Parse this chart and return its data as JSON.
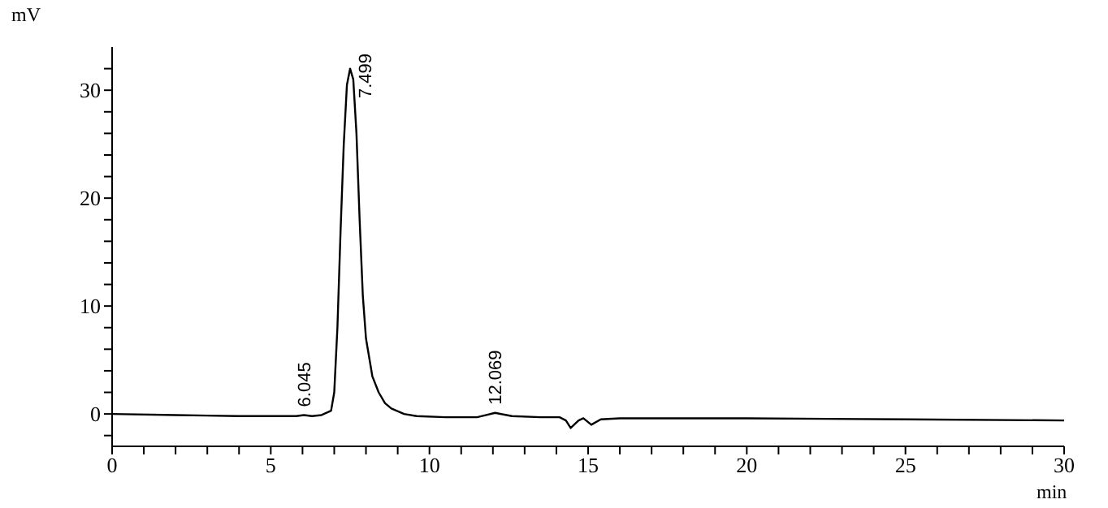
{
  "chart_data": {
    "type": "line",
    "xlabel": "min",
    "ylabel": "mV",
    "x": [
      0,
      2,
      4,
      5.8,
      6.045,
      6.3,
      6.6,
      6.9,
      7.0,
      7.1,
      7.2,
      7.3,
      7.4,
      7.5,
      7.6,
      7.7,
      7.8,
      7.9,
      8.0,
      8.2,
      8.4,
      8.6,
      8.8,
      9.2,
      9.6,
      10.5,
      11.5,
      12.069,
      12.6,
      13.5,
      14.1,
      14.3,
      14.45,
      14.7,
      14.85,
      15.1,
      15.4,
      16,
      20,
      25,
      30
    ],
    "series": [
      {
        "color": "#000000",
        "values": [
          0,
          -0.1,
          -0.2,
          -0.2,
          -0.1,
          -0.2,
          -0.1,
          0.3,
          2,
          8,
          17,
          25,
          30.5,
          32,
          31,
          26,
          18,
          11,
          7,
          3.5,
          2,
          1,
          0.5,
          0,
          -0.2,
          -0.3,
          -0.3,
          0.1,
          -0.2,
          -0.3,
          -0.3,
          -0.6,
          -1.3,
          -0.6,
          -0.4,
          -1.0,
          -0.5,
          -0.4,
          -0.4,
          -0.5,
          -0.6
        ]
      }
    ],
    "xlim": [
      0,
      30
    ],
    "xticks": [
      0,
      {
        "value": 1,
        "label": null
      },
      {
        "value": 2,
        "label": null
      },
      {
        "value": 3,
        "label": null
      },
      {
        "value": 4,
        "label": null
      },
      5,
      {
        "value": 6,
        "label": null
      },
      {
        "value": 7,
        "label": null
      },
      {
        "value": 8,
        "label": null
      },
      {
        "value": 9,
        "label": null
      },
      10,
      {
        "value": 11,
        "label": null
      },
      {
        "value": 12,
        "label": null
      },
      {
        "value": 13,
        "label": null
      },
      {
        "value": 14,
        "label": null
      },
      15,
      {
        "value": 16,
        "label": null
      },
      {
        "value": 17,
        "label": null
      },
      {
        "value": 18,
        "label": null
      },
      {
        "value": 19,
        "label": null
      },
      20,
      {
        "value": 21,
        "label": null
      },
      {
        "value": 22,
        "label": null
      },
      {
        "value": 23,
        "label": null
      },
      {
        "value": 24,
        "label": null
      },
      25,
      {
        "value": 26,
        "label": null
      },
      {
        "value": 27,
        "label": null
      },
      {
        "value": 28,
        "label": null
      },
      {
        "value": 29,
        "label": null
      },
      30
    ],
    "ylim": [
      -3,
      34
    ],
    "yticks": [
      {
        "value": -2,
        "label": null
      },
      0,
      {
        "value": 2,
        "label": null
      },
      {
        "value": 4,
        "label": null
      },
      {
        "value": 6,
        "label": null
      },
      {
        "value": 8,
        "label": null
      },
      10,
      {
        "value": 12,
        "label": null
      },
      {
        "value": 14,
        "label": null
      },
      {
        "value": 16,
        "label": null
      },
      {
        "value": 18,
        "label": null
      },
      20,
      {
        "value": 22,
        "label": null
      },
      {
        "value": 24,
        "label": null
      },
      {
        "value": 26,
        "label": null
      },
      {
        "value": 28,
        "label": null
      },
      30,
      {
        "value": 32,
        "label": null
      }
    ],
    "annotations": [
      {
        "text": "6.045",
        "x": 6.045,
        "y": -0.1
      },
      {
        "text": "7.499",
        "x": 7.499,
        "y": 32
      },
      {
        "text": "12.069",
        "x": 12.069,
        "y": 0.1
      }
    ],
    "grid": false,
    "legend": false,
    "marker": "none",
    "line_style": "solid"
  }
}
